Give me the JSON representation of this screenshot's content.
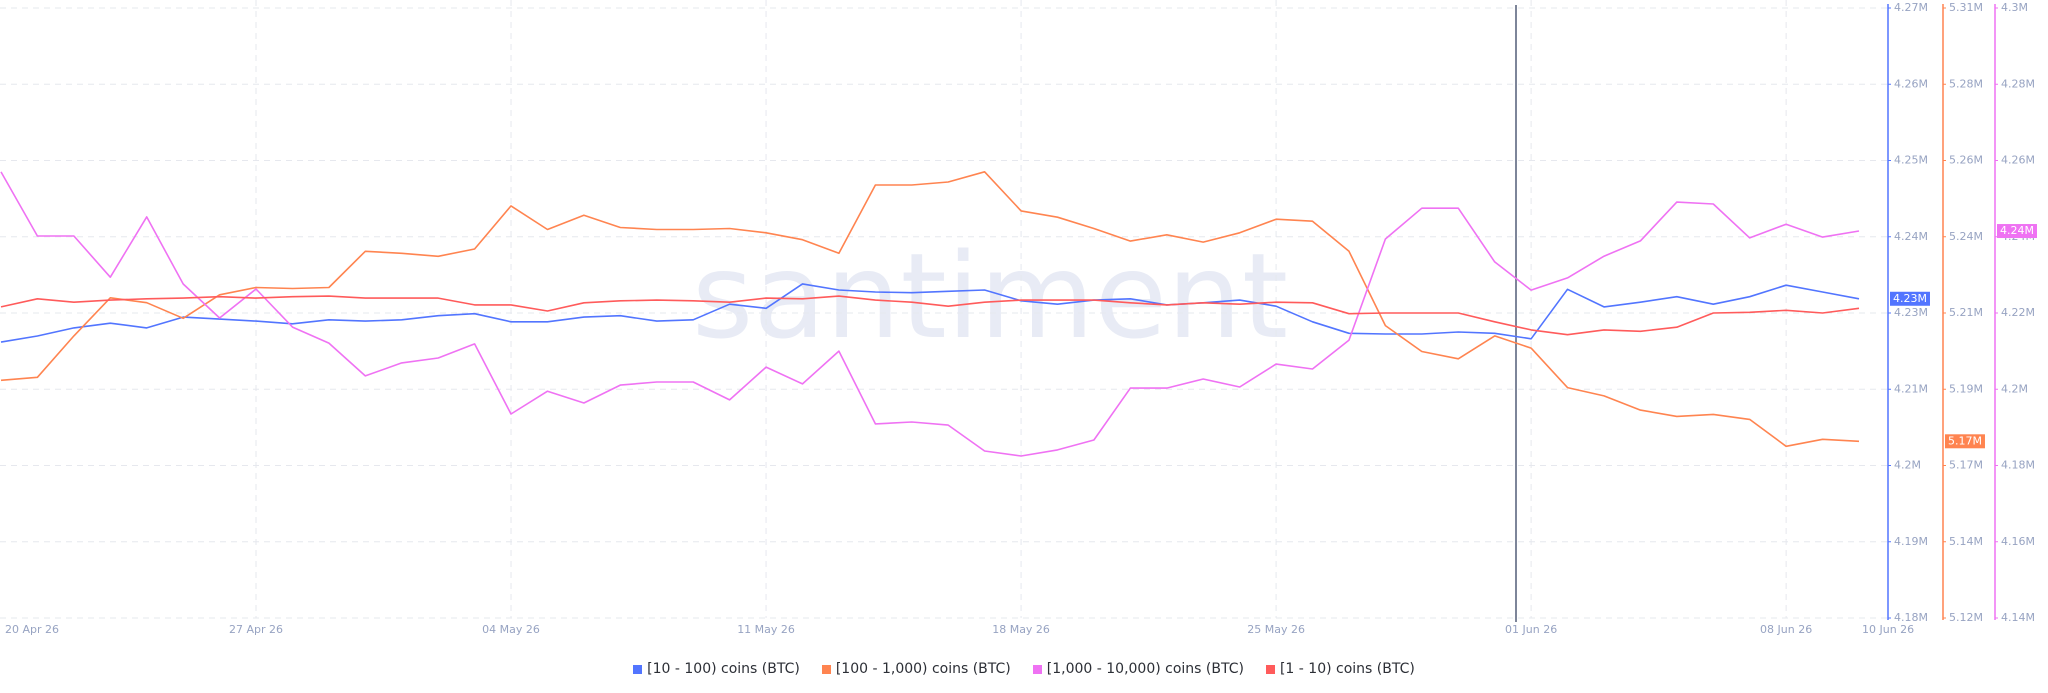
{
  "chart_data": {
    "type": "line",
    "watermark": "santiment",
    "categories": [
      "20 Apr 26",
      null,
      null,
      null,
      null,
      null,
      null,
      "27 Apr 26",
      null,
      null,
      null,
      null,
      null,
      null,
      "04 May 26",
      null,
      null,
      null,
      null,
      null,
      null,
      "11 May 26",
      null,
      null,
      null,
      null,
      null,
      null,
      "18 May 26",
      null,
      null,
      null,
      null,
      null,
      null,
      "25 May 26",
      null,
      null,
      null,
      null,
      null,
      null,
      "01 Jun 26",
      null,
      null,
      null,
      null,
      null,
      null,
      "08 Jun 26",
      null,
      "10 Jun 26"
    ],
    "ylim": [
      4180000,
      4270000
    ],
    "yticks": [
      {
        "value": 4270000,
        "label": "4.27M"
      },
      {
        "value": 4258750,
        "label": "4.26M"
      },
      {
        "value": 4247500,
        "label": "4.25M"
      },
      {
        "value": 4236250,
        "label": "4.24M"
      },
      {
        "value": 4225000,
        "label": "4.23M"
      },
      {
        "value": 4213750,
        "label": "4.21M"
      },
      {
        "value": 4202500,
        "label": "4.2M"
      },
      {
        "value": 4191250,
        "label": "4.19M"
      },
      {
        "value": 4180000,
        "label": "4.18M"
      }
    ],
    "y2lim": [
      5121500,
      5305500
    ],
    "y2ticks": [
      {
        "value": 5305500,
        "label": "5.31M"
      },
      {
        "value": 5282500,
        "label": "5.28M"
      },
      {
        "value": 5259500,
        "label": "5.26M"
      },
      {
        "value": 5236500,
        "label": "5.24M"
      },
      {
        "value": 5213500,
        "label": "5.21M"
      },
      {
        "value": 5190500,
        "label": "5.19M"
      },
      {
        "value": 5167500,
        "label": "5.17M"
      },
      {
        "value": 5144500,
        "label": "5.14M"
      },
      {
        "value": 5121500,
        "label": "5.12M"
      }
    ],
    "y3lim": [
      4140000,
      4300000
    ],
    "y3ticks": [
      {
        "value": 4300000,
        "label": "4.3M"
      },
      {
        "value": 4280000,
        "label": "4.28M"
      },
      {
        "value": 4260000,
        "label": "4.26M"
      },
      {
        "value": 4240000,
        "label": "4.24M"
      },
      {
        "value": 4220000,
        "label": "4.22M"
      },
      {
        "value": 4200000,
        "label": "4.2M"
      },
      {
        "value": 4180000,
        "label": "4.18M"
      },
      {
        "value": 4160000,
        "label": "4.16M"
      },
      {
        "value": 4140000,
        "label": "4.14M"
      }
    ],
    "grid": true,
    "series": [
      {
        "name": "[10 - 100) coins (BTC)",
        "color": "#5275ff",
        "axis": "y",
        "last_label": "4.23M",
        "values": [
          4220700,
          4221600,
          4222800,
          4223500,
          4222800,
          4224400,
          4224100,
          4223800,
          4223400,
          4224000,
          4223800,
          4224000,
          4224600,
          4224900,
          4223700,
          4223700,
          4224400,
          4224600,
          4223800,
          4224000,
          4226300,
          4225700,
          4229300,
          4228400,
          4228100,
          4228000,
          4228200,
          4228400,
          4226800,
          4226300,
          4226900,
          4227100,
          4226200,
          4226500,
          4226900,
          4226000,
          4223700,
          4222000,
          4221900,
          4221900,
          4222200,
          4222000,
          4221200,
          4228500,
          4225900,
          4226600,
          4227400,
          4226300,
          4227400,
          4229100,
          4228100,
          4227100
        ]
      },
      {
        "name": "[100 - 1,000) coins (BTC)",
        "color": "#ff8450",
        "axis": "y2",
        "last_label": "5.17M",
        "values": [
          5193200,
          5194100,
          5206600,
          5218100,
          5216600,
          5211900,
          5219000,
          5221200,
          5220900,
          5221200,
          5232100,
          5231500,
          5230600,
          5232800,
          5245800,
          5238700,
          5243000,
          5239300,
          5238700,
          5238700,
          5239000,
          5237700,
          5235600,
          5231500,
          5252100,
          5252100,
          5253000,
          5256100,
          5244300,
          5242400,
          5239000,
          5235200,
          5237100,
          5234900,
          5237700,
          5241800,
          5241200,
          5232100,
          5209700,
          5201900,
          5199700,
          5206600,
          5202900,
          5191000,
          5188500,
          5184200,
          5182300,
          5182900,
          5181400,
          5173300,
          5175400,
          5174800
        ]
      },
      {
        "name": "[1,000 - 10,000) coins (BTC)",
        "color": "#ef72f3",
        "axis": "y3",
        "last_label": "4.24M",
        "values": [
          4257000,
          4240200,
          4240200,
          4229400,
          4245200,
          4227600,
          4218700,
          4226300,
          4216300,
          4212100,
          4203500,
          4206900,
          4208200,
          4211900,
          4193500,
          4199500,
          4196400,
          4201100,
          4201900,
          4201900,
          4197200,
          4205800,
          4201400,
          4210000,
          4190900,
          4191400,
          4190600,
          4183800,
          4182500,
          4184100,
          4186700,
          4200300,
          4200300,
          4202700,
          4200600,
          4206600,
          4205300,
          4212900,
          4239400,
          4247500,
          4247500,
          4233400,
          4226000,
          4229200,
          4234900,
          4238900,
          4249100,
          4248600,
          4239700,
          4243300,
          4239900,
          4241500
        ]
      },
      {
        "name": "[1 - 10) coins (BTC)",
        "color": "#ff5b5b",
        "axis": "y",
        "values": [
          4225900,
          4227100,
          4226600,
          4226900,
          4227100,
          4227200,
          4227400,
          4227200,
          4227400,
          4227500,
          4227200,
          4227200,
          4227200,
          4226200,
          4226200,
          4225300,
          4226500,
          4226800,
          4226900,
          4226800,
          4226600,
          4227200,
          4227100,
          4227500,
          4226900,
          4226600,
          4226000,
          4226600,
          4226900,
          4226900,
          4226900,
          4226500,
          4226200,
          4226500,
          4226300,
          4226600,
          4226500,
          4224900,
          4225000,
          4225000,
          4225000,
          4223700,
          4222500,
          4221800,
          4222500,
          4222300,
          4222900,
          4225000,
          4225100,
          4225400,
          4225000,
          4225700
        ]
      }
    ]
  }
}
